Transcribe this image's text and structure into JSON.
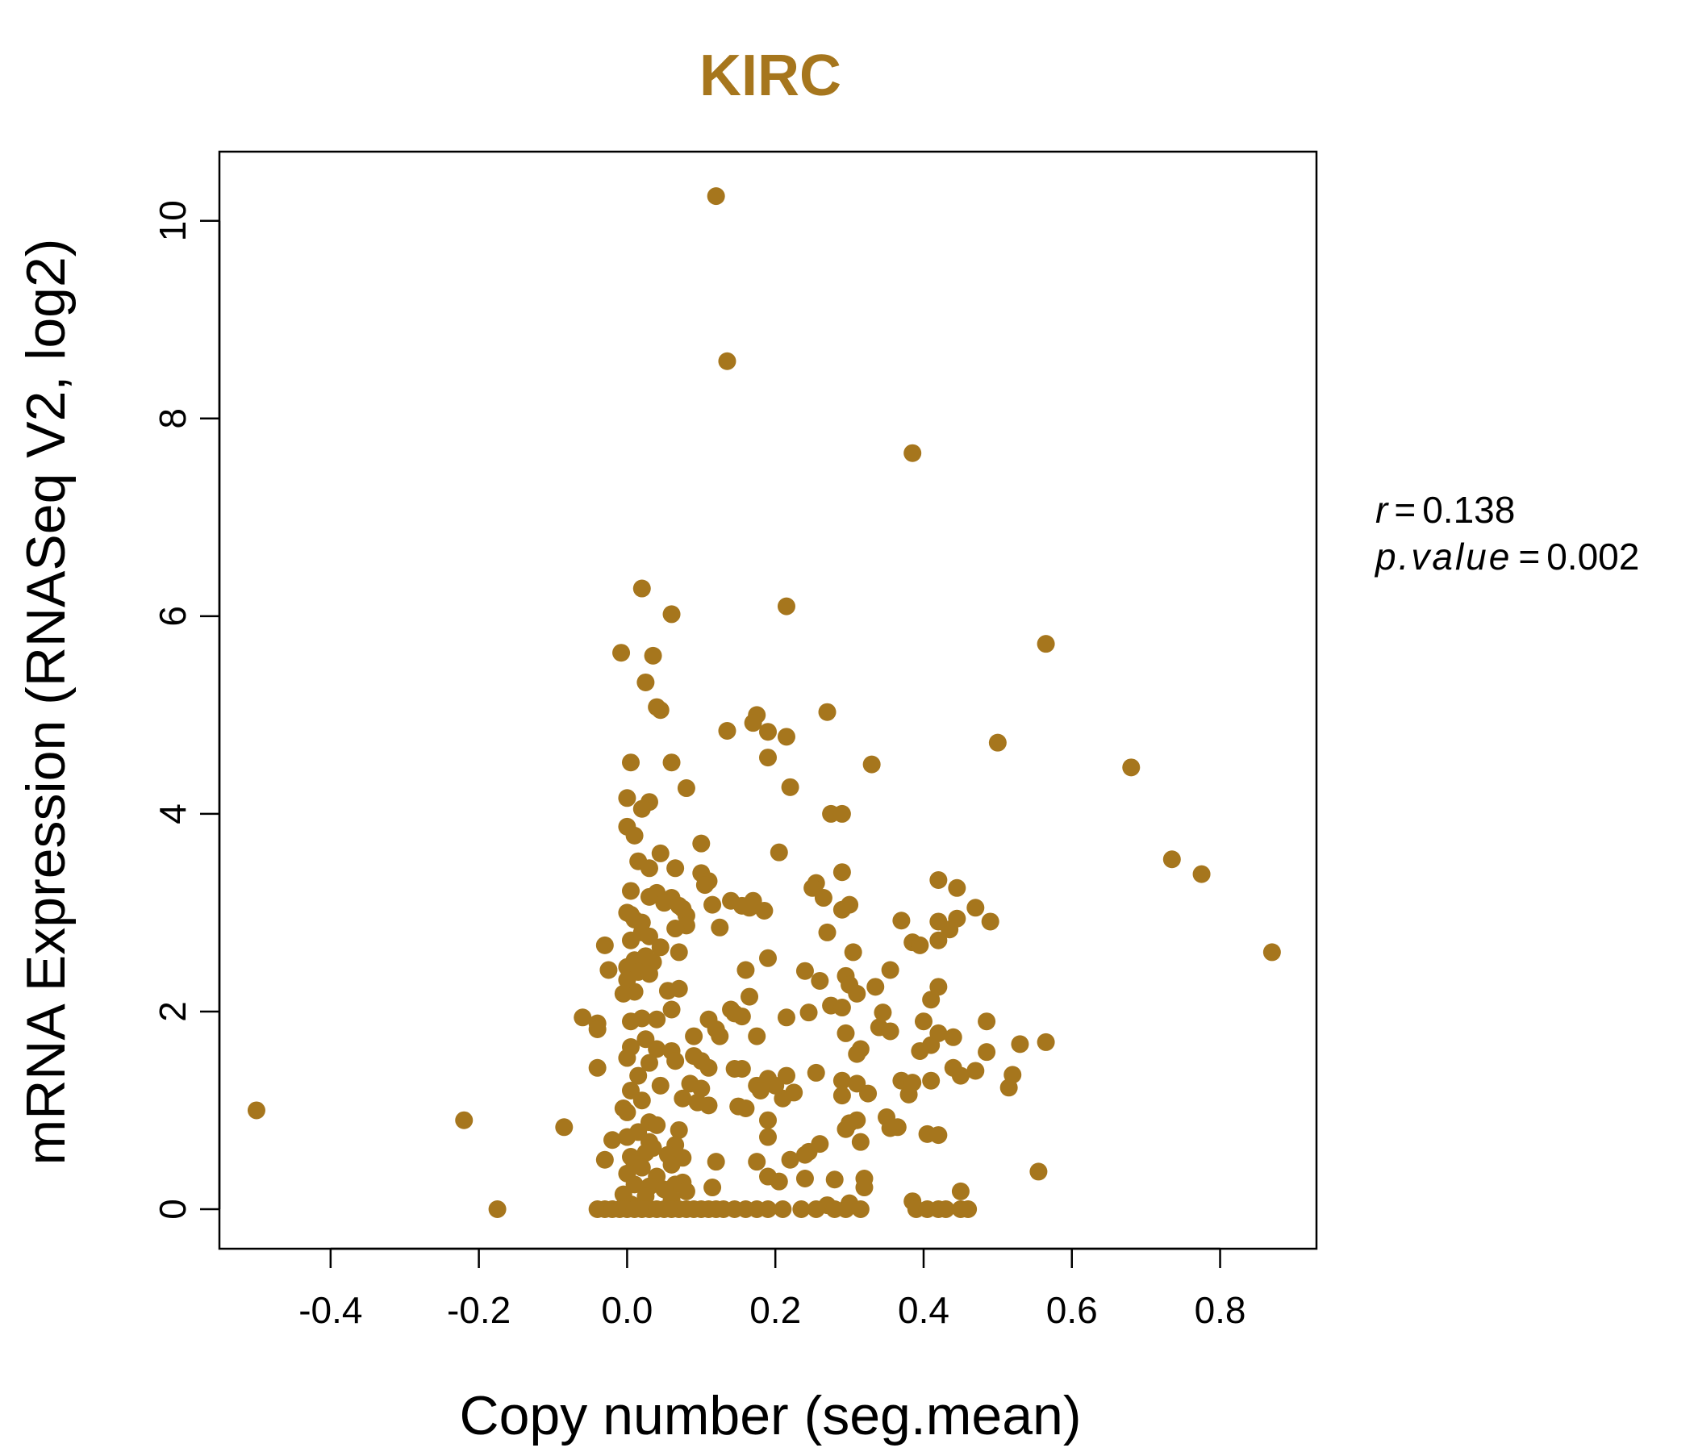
{
  "chart_data": {
    "type": "scatter",
    "title": "KIRC",
    "xlabel": "Copy number (seg.mean)",
    "ylabel": "mRNA Expression (RNASeq V2, log2)",
    "xlim": [
      -0.55,
      0.93
    ],
    "ylim": [
      -0.4,
      10.7
    ],
    "x_ticks": [
      -0.4,
      -0.2,
      0.0,
      0.2,
      0.4,
      0.6,
      0.8
    ],
    "x_tick_labels": [
      "-0.4",
      "-0.2",
      "0.0",
      "0.2",
      "0.4",
      "0.6",
      "0.8"
    ],
    "y_ticks": [
      0,
      2,
      4,
      6,
      8,
      10
    ],
    "y_tick_labels": [
      "0",
      "2",
      "4",
      "6",
      "8",
      "10"
    ],
    "grid": false,
    "color": "#A6761D",
    "annotation": {
      "r_symbol": "r",
      "r_value": "0.138",
      "p_symbol": "p.value",
      "p_value": "0.002",
      "equals": "="
    },
    "points": [
      [
        0.12,
        10.25
      ],
      [
        0.135,
        8.58
      ],
      [
        0.385,
        7.65
      ],
      [
        0.02,
        6.28
      ],
      [
        0.215,
        6.1
      ],
      [
        0.06,
        6.02
      ],
      [
        0.565,
        5.72
      ],
      [
        -0.008,
        5.63
      ],
      [
        0.035,
        5.6
      ],
      [
        0.025,
        5.33
      ],
      [
        0.04,
        5.08
      ],
      [
        0.045,
        5.05
      ],
      [
        0.27,
        5.03
      ],
      [
        0.175,
        5.0
      ],
      [
        0.17,
        4.92
      ],
      [
        0.135,
        4.84
      ],
      [
        0.19,
        4.83
      ],
      [
        0.215,
        4.78
      ],
      [
        0.5,
        4.72
      ],
      [
        0.19,
        4.57
      ],
      [
        0.06,
        4.52
      ],
      [
        0.005,
        4.52
      ],
      [
        0.33,
        4.5
      ],
      [
        0.68,
        4.47
      ],
      [
        0.22,
        4.27
      ],
      [
        0.08,
        4.26
      ],
      [
        0.0,
        4.16
      ],
      [
        0.03,
        4.12
      ],
      [
        0.02,
        4.05
      ],
      [
        0.275,
        4.0
      ],
      [
        0.29,
        4.0
      ],
      [
        0.0,
        3.87
      ],
      [
        0.01,
        3.78
      ],
      [
        0.1,
        3.7
      ],
      [
        0.205,
        3.61
      ],
      [
        0.045,
        3.6
      ],
      [
        0.735,
        3.54
      ],
      [
        0.015,
        3.52
      ],
      [
        0.03,
        3.45
      ],
      [
        0.065,
        3.45
      ],
      [
        0.29,
        3.41
      ],
      [
        0.1,
        3.4
      ],
      [
        0.775,
        3.39
      ],
      [
        0.42,
        3.33
      ],
      [
        0.11,
        3.32
      ],
      [
        0.255,
        3.3
      ],
      [
        0.105,
        3.28
      ],
      [
        0.25,
        3.25
      ],
      [
        0.445,
        3.25
      ],
      [
        0.005,
        3.22
      ],
      [
        0.04,
        3.2
      ],
      [
        0.03,
        3.16
      ],
      [
        0.06,
        3.15
      ],
      [
        0.265,
        3.15
      ],
      [
        0.14,
        3.12
      ],
      [
        0.17,
        3.12
      ],
      [
        0.05,
        3.1
      ],
      [
        0.115,
        3.08
      ],
      [
        0.155,
        3.07
      ],
      [
        0.3,
        3.08
      ],
      [
        0.29,
        3.03
      ],
      [
        0.07,
        3.07
      ],
      [
        0.165,
        3.05
      ],
      [
        0.075,
        3.04
      ],
      [
        0.185,
        3.02
      ],
      [
        0.47,
        3.05
      ],
      [
        0.0,
        3.0
      ],
      [
        0.005,
        2.98
      ],
      [
        0.08,
        2.97
      ],
      [
        0.37,
        2.92
      ],
      [
        0.01,
        2.93
      ],
      [
        0.42,
        2.91
      ],
      [
        0.445,
        2.94
      ],
      [
        0.49,
        2.91
      ],
      [
        0.02,
        2.9
      ],
      [
        0.08,
        2.87
      ],
      [
        0.125,
        2.85
      ],
      [
        0.065,
        2.84
      ],
      [
        0.27,
        2.8
      ],
      [
        0.435,
        2.83
      ],
      [
        0.02,
        2.8
      ],
      [
        0.03,
        2.76
      ],
      [
        0.005,
        2.72
      ],
      [
        0.385,
        2.7
      ],
      [
        0.42,
        2.72
      ],
      [
        0.395,
        2.67
      ],
      [
        -0.03,
        2.67
      ],
      [
        0.045,
        2.65
      ],
      [
        0.305,
        2.6
      ],
      [
        0.07,
        2.6
      ],
      [
        0.87,
        2.6
      ],
      [
        0.025,
        2.56
      ],
      [
        0.01,
        2.52
      ],
      [
        0.19,
        2.54
      ],
      [
        0.035,
        2.5
      ],
      [
        0.02,
        2.47
      ],
      [
        0.0,
        2.45
      ],
      [
        -0.025,
        2.42
      ],
      [
        0.16,
        2.42
      ],
      [
        0.355,
        2.42
      ],
      [
        0.24,
        2.41
      ],
      [
        0.015,
        2.4
      ],
      [
        0.03,
        2.38
      ],
      [
        0.295,
        2.36
      ],
      [
        0.0,
        2.32
      ],
      [
        0.26,
        2.31
      ],
      [
        0.3,
        2.27
      ],
      [
        0.42,
        2.25
      ],
      [
        0.335,
        2.25
      ],
      [
        0.07,
        2.23
      ],
      [
        0.055,
        2.21
      ],
      [
        0.01,
        2.2
      ],
      [
        -0.005,
        2.18
      ],
      [
        0.31,
        2.18
      ],
      [
        0.165,
        2.15
      ],
      [
        0.41,
        2.12
      ],
      [
        0.275,
        2.06
      ],
      [
        0.29,
        2.04
      ],
      [
        0.06,
        2.02
      ],
      [
        0.14,
        2.02
      ],
      [
        0.345,
        1.99
      ],
      [
        0.145,
        1.98
      ],
      [
        0.245,
        1.99
      ],
      [
        0.155,
        1.95
      ],
      [
        0.215,
        1.94
      ],
      [
        -0.06,
        1.94
      ],
      [
        0.02,
        1.93
      ],
      [
        0.04,
        1.92
      ],
      [
        0.11,
        1.92
      ],
      [
        0.005,
        1.9
      ],
      [
        0.4,
        1.9
      ],
      [
        0.485,
        1.9
      ],
      [
        -0.04,
        1.88
      ],
      [
        0.34,
        1.84
      ],
      [
        0.12,
        1.82
      ],
      [
        0.355,
        1.8
      ],
      [
        0.295,
        1.78
      ],
      [
        -0.04,
        1.82
      ],
      [
        0.09,
        1.75
      ],
      [
        0.125,
        1.75
      ],
      [
        0.175,
        1.75
      ],
      [
        0.42,
        1.78
      ],
      [
        0.44,
        1.74
      ],
      [
        0.025,
        1.72
      ],
      [
        0.565,
        1.69
      ],
      [
        0.53,
        1.67
      ],
      [
        0.41,
        1.66
      ],
      [
        0.005,
        1.64
      ],
      [
        0.04,
        1.62
      ],
      [
        0.315,
        1.62
      ],
      [
        0.06,
        1.6
      ],
      [
        0.395,
        1.6
      ],
      [
        0.485,
        1.59
      ],
      [
        0.31,
        1.57
      ],
      [
        0.09,
        1.55
      ],
      [
        0.1,
        1.5
      ],
      [
        0.0,
        1.53
      ],
      [
        0.065,
        1.5
      ],
      [
        0.03,
        1.48
      ],
      [
        -0.04,
        1.43
      ],
      [
        0.11,
        1.43
      ],
      [
        0.145,
        1.42
      ],
      [
        0.155,
        1.42
      ],
      [
        0.47,
        1.4
      ],
      [
        0.44,
        1.43
      ],
      [
        0.255,
        1.38
      ],
      [
        0.215,
        1.35
      ],
      [
        0.52,
        1.36
      ],
      [
        0.45,
        1.35
      ],
      [
        0.015,
        1.35
      ],
      [
        0.19,
        1.32
      ],
      [
        0.37,
        1.3
      ],
      [
        0.385,
        1.28
      ],
      [
        0.29,
        1.3
      ],
      [
        0.31,
        1.27
      ],
      [
        0.175,
        1.25
      ],
      [
        0.085,
        1.27
      ],
      [
        0.41,
        1.3
      ],
      [
        0.045,
        1.25
      ],
      [
        0.2,
        1.25
      ],
      [
        0.515,
        1.23
      ],
      [
        0.005,
        1.2
      ],
      [
        0.1,
        1.22
      ],
      [
        0.18,
        1.2
      ],
      [
        0.225,
        1.18
      ],
      [
        0.38,
        1.16
      ],
      [
        0.325,
        1.17
      ],
      [
        0.29,
        1.15
      ],
      [
        0.21,
        1.12
      ],
      [
        0.075,
        1.12
      ],
      [
        0.02,
        1.1
      ],
      [
        0.095,
        1.08
      ],
      [
        0.11,
        1.05
      ],
      [
        0.15,
        1.04
      ],
      [
        0.16,
        1.02
      ],
      [
        -0.005,
        1.02
      ],
      [
        -0.5,
        1.0
      ],
      [
        0.0,
        0.98
      ],
      [
        0.35,
        0.93
      ],
      [
        -0.22,
        0.9
      ],
      [
        0.31,
        0.9
      ],
      [
        0.19,
        0.9
      ],
      [
        0.03,
        0.88
      ],
      [
        0.3,
        0.87
      ],
      [
        0.04,
        0.85
      ],
      [
        0.365,
        0.83
      ],
      [
        0.355,
        0.82
      ],
      [
        -0.085,
        0.83
      ],
      [
        0.295,
        0.81
      ],
      [
        0.07,
        0.8
      ],
      [
        0.015,
        0.78
      ],
      [
        0.405,
        0.76
      ],
      [
        0.42,
        0.75
      ],
      [
        0.19,
        0.73
      ],
      [
        0.0,
        0.73
      ],
      [
        -0.02,
        0.7
      ],
      [
        0.03,
        0.68
      ],
      [
        0.26,
        0.66
      ],
      [
        0.065,
        0.65
      ],
      [
        0.315,
        0.68
      ],
      [
        0.035,
        0.62
      ],
      [
        0.245,
        0.58
      ],
      [
        0.025,
        0.57
      ],
      [
        0.24,
        0.55
      ],
      [
        0.055,
        0.55
      ],
      [
        0.005,
        0.53
      ],
      [
        0.22,
        0.5
      ],
      [
        0.075,
        0.52
      ],
      [
        -0.03,
        0.5
      ],
      [
        0.12,
        0.48
      ],
      [
        0.175,
        0.48
      ],
      [
        0.01,
        0.46
      ],
      [
        0.06,
        0.45
      ],
      [
        0.02,
        0.42
      ],
      [
        0.555,
        0.38
      ],
      [
        0.0,
        0.36
      ],
      [
        0.04,
        0.33
      ],
      [
        0.19,
        0.33
      ],
      [
        0.28,
        0.3
      ],
      [
        0.24,
        0.31
      ],
      [
        0.32,
        0.31
      ],
      [
        0.205,
        0.28
      ],
      [
        0.075,
        0.27
      ],
      [
        0.065,
        0.25
      ],
      [
        0.01,
        0.25
      ],
      [
        0.03,
        0.23
      ],
      [
        0.32,
        0.22
      ],
      [
        0.115,
        0.22
      ],
      [
        0.05,
        0.2
      ],
      [
        0.08,
        0.18
      ],
      [
        0.45,
        0.18
      ],
      [
        -0.005,
        0.15
      ],
      [
        0.025,
        0.13
      ],
      [
        0.06,
        0.1
      ],
      [
        0.385,
        0.08
      ],
      [
        0.3,
        0.06
      ],
      [
        0.005,
        0.05
      ],
      [
        0.27,
        0.04
      ],
      [
        -0.175,
        0.0
      ],
      [
        -0.04,
        0.0
      ],
      [
        -0.03,
        0.0
      ],
      [
        -0.02,
        0.0
      ],
      [
        -0.01,
        0.0
      ],
      [
        0.0,
        0.0
      ],
      [
        0.01,
        0.0
      ],
      [
        0.02,
        0.0
      ],
      [
        0.03,
        0.0
      ],
      [
        0.04,
        0.0
      ],
      [
        0.05,
        0.0
      ],
      [
        0.06,
        0.0
      ],
      [
        0.07,
        0.0
      ],
      [
        0.08,
        0.0
      ],
      [
        0.09,
        0.0
      ],
      [
        0.1,
        0.0
      ],
      [
        0.11,
        0.0
      ],
      [
        0.12,
        0.0
      ],
      [
        0.13,
        0.0
      ],
      [
        0.145,
        0.0
      ],
      [
        0.16,
        0.0
      ],
      [
        0.175,
        0.0
      ],
      [
        0.19,
        0.0
      ],
      [
        0.21,
        0.0
      ],
      [
        0.235,
        0.0
      ],
      [
        0.255,
        0.0
      ],
      [
        0.28,
        0.0
      ],
      [
        0.295,
        0.0
      ],
      [
        0.315,
        0.0
      ],
      [
        0.39,
        0.0
      ],
      [
        0.405,
        0.0
      ],
      [
        0.42,
        0.0
      ],
      [
        0.43,
        0.0
      ],
      [
        0.45,
        0.0
      ],
      [
        0.46,
        0.0
      ]
    ]
  }
}
